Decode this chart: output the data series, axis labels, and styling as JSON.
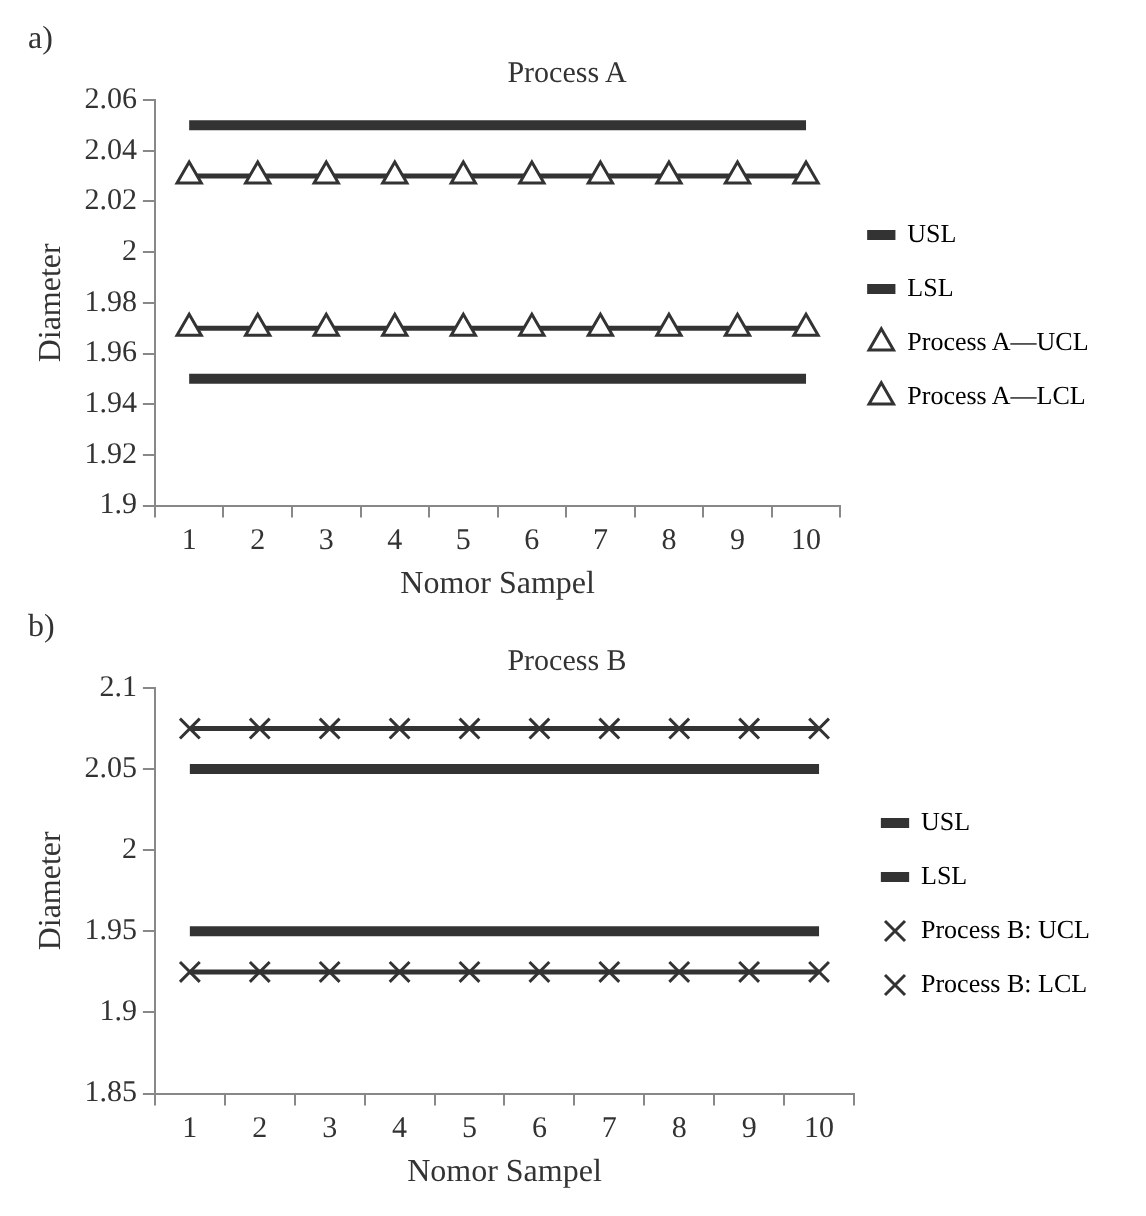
{
  "chart_data": [
    {
      "type": "line",
      "title": "Process A",
      "xlabel": "Nomor Sampel",
      "ylabel": "Diameter",
      "annotations": [
        "a)"
      ],
      "categories": [
        "1",
        "2",
        "3",
        "4",
        "5",
        "6",
        "7",
        "8",
        "9",
        "10"
      ],
      "ylim": [
        1.9,
        2.06
      ],
      "yticks": [
        1.9,
        1.92,
        1.94,
        1.96,
        1.98,
        2,
        2.02,
        2.04,
        2.06
      ],
      "grid": false,
      "legend": "right",
      "series": [
        {
          "name": "USL",
          "color": "#333333",
          "marker": "none",
          "values": [
            2.05,
            2.05,
            2.05,
            2.05,
            2.05,
            2.05,
            2.05,
            2.05,
            2.05,
            2.05
          ]
        },
        {
          "name": "LSL",
          "color": "#333333",
          "marker": "none",
          "values": [
            1.95,
            1.95,
            1.95,
            1.95,
            1.95,
            1.95,
            1.95,
            1.95,
            1.95,
            1.95
          ]
        },
        {
          "name": "Process A—UCL",
          "color": "#333333",
          "marker": "triangle",
          "values": [
            2.03,
            2.03,
            2.03,
            2.03,
            2.03,
            2.03,
            2.03,
            2.03,
            2.03,
            2.03
          ]
        },
        {
          "name": "Process A—LCL",
          "color": "#333333",
          "marker": "triangle",
          "values": [
            1.97,
            1.97,
            1.97,
            1.97,
            1.97,
            1.97,
            1.97,
            1.97,
            1.97,
            1.97
          ]
        }
      ]
    },
    {
      "type": "line",
      "title": "Process B",
      "xlabel": "Nomor Sampel",
      "ylabel": "Diameter",
      "annotations": [
        "b)"
      ],
      "categories": [
        "1",
        "2",
        "3",
        "4",
        "5",
        "6",
        "7",
        "8",
        "9",
        "10"
      ],
      "ylim": [
        1.85,
        2.1
      ],
      "yticks": [
        1.85,
        1.9,
        1.95,
        2,
        2.05,
        2.1
      ],
      "grid": false,
      "legend": "right",
      "series": [
        {
          "name": "USL",
          "color": "#333333",
          "marker": "none",
          "values": [
            2.05,
            2.05,
            2.05,
            2.05,
            2.05,
            2.05,
            2.05,
            2.05,
            2.05,
            2.05
          ]
        },
        {
          "name": "LSL",
          "color": "#333333",
          "marker": "none",
          "values": [
            1.95,
            1.95,
            1.95,
            1.95,
            1.95,
            1.95,
            1.95,
            1.95,
            1.95,
            1.95
          ]
        },
        {
          "name": "Process B: UCL",
          "color": "#333333",
          "marker": "cross",
          "values": [
            2.075,
            2.075,
            2.075,
            2.075,
            2.075,
            2.075,
            2.075,
            2.075,
            2.075,
            2.075
          ]
        },
        {
          "name": "Process B: LCL",
          "color": "#333333",
          "marker": "cross",
          "values": [
            1.925,
            1.925,
            1.925,
            1.925,
            1.925,
            1.925,
            1.925,
            1.925,
            1.925,
            1.925
          ]
        }
      ]
    }
  ]
}
